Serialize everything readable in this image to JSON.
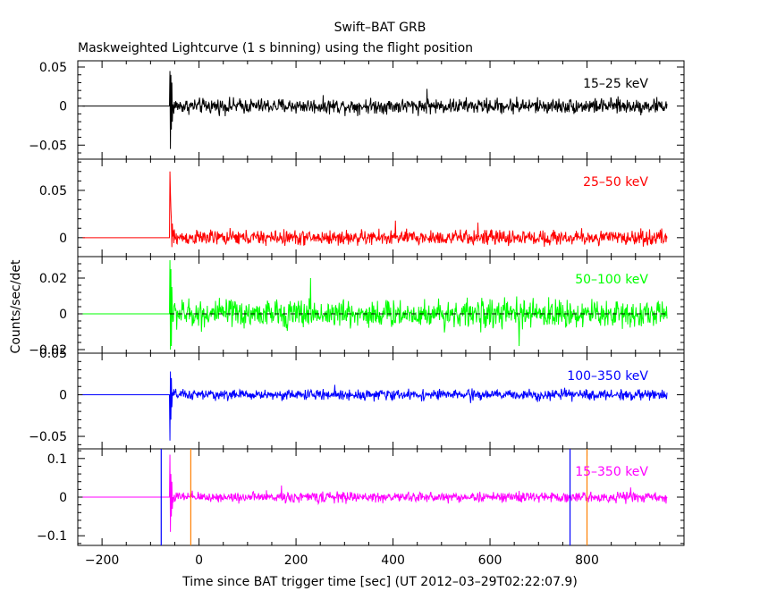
{
  "figure": {
    "title": "Swift–BAT GRB",
    "subtitle": "Maskweighted Lightcurve (1 s binning) using the flight position",
    "xlabel": "Time since BAT trigger time [sec] (UT 2012–03–29T02:22:07.9)",
    "ylabel": "Counts/sec/det"
  },
  "chart_data": [
    {
      "type": "line",
      "panel": 1,
      "name": "15–25 keV",
      "color": "#000000",
      "xlim": [
        -250,
        1000
      ],
      "ylim": [
        -0.068,
        0.058
      ],
      "yticks": [
        {
          "value": 0.05,
          "label": "0.05"
        },
        {
          "value": 0,
          "label": "0"
        },
        {
          "value": -0.05,
          "label": "−0.05"
        }
      ],
      "flat_start": -240,
      "onset": -60,
      "end": 965,
      "noise_amplitude": 0.008,
      "burst": [
        {
          "x": -60,
          "y": 0.045
        },
        {
          "x": -59,
          "y": -0.055
        },
        {
          "x": -58,
          "y": 0.04
        },
        {
          "x": -57,
          "y": -0.03
        },
        {
          "x": -56,
          "y": 0.03
        },
        {
          "x": -55,
          "y": -0.02
        }
      ],
      "spike_values": [
        {
          "x": 470,
          "y": 0.022
        },
        {
          "x": 655,
          "y": 0.012
        }
      ]
    },
    {
      "type": "line",
      "panel": 2,
      "name": "25–50 keV",
      "color": "#ff0000",
      "xlim": [
        -250,
        1000
      ],
      "ylim": [
        -0.02,
        0.083
      ],
      "yticks": [
        {
          "value": 0.05,
          "label": "0.05"
        },
        {
          "value": 0,
          "label": "0"
        }
      ],
      "flat_start": -240,
      "onset": -60,
      "end": 965,
      "noise_amplitude": 0.0065,
      "burst": [
        {
          "x": -60,
          "y": 0.07
        },
        {
          "x": -59,
          "y": 0.048
        },
        {
          "x": -58,
          "y": 0.03
        },
        {
          "x": -57,
          "y": 0.018
        },
        {
          "x": -56,
          "y": -0.01
        },
        {
          "x": -55,
          "y": 0.015
        }
      ],
      "spike_values": [
        {
          "x": 405,
          "y": 0.018
        },
        {
          "x": 575,
          "y": 0.016
        }
      ]
    },
    {
      "type": "line",
      "panel": 3,
      "name": "50–100 keV",
      "color": "#00ff00",
      "xlim": [
        -250,
        1000
      ],
      "ylim": [
        -0.022,
        0.032
      ],
      "yticks": [
        {
          "value": 0.02,
          "label": "0.02"
        },
        {
          "value": 0,
          "label": "0"
        },
        {
          "value": -0.02,
          "label": "−0.02"
        }
      ],
      "flat_start": -240,
      "onset": -60,
      "end": 965,
      "noise_amplitude": 0.0065,
      "burst": [
        {
          "x": -60,
          "y": 0.03
        },
        {
          "x": -59,
          "y": -0.02
        },
        {
          "x": -58,
          "y": 0.025
        },
        {
          "x": -57,
          "y": -0.018
        },
        {
          "x": -56,
          "y": 0.015
        }
      ],
      "spike_values": [
        {
          "x": 230,
          "y": 0.02
        },
        {
          "x": 660,
          "y": -0.018
        }
      ]
    },
    {
      "type": "line",
      "panel": 4,
      "name": "100–350 keV",
      "color": "#0000ff",
      "xlim": [
        -250,
        1000
      ],
      "ylim": [
        -0.065,
        0.05
      ],
      "yticks": [
        {
          "value": 0.05,
          "label": "0.05"
        },
        {
          "value": 0,
          "label": "0"
        },
        {
          "value": -0.05,
          "label": "−0.05"
        }
      ],
      "flat_start": -240,
      "onset": -60,
      "end": 965,
      "noise_amplitude": 0.005,
      "burst": [
        {
          "x": -60,
          "y": -0.055
        },
        {
          "x": -59,
          "y": 0.028
        },
        {
          "x": -58,
          "y": -0.03
        },
        {
          "x": -57,
          "y": 0.02
        },
        {
          "x": -56,
          "y": -0.015
        }
      ],
      "spike_values": [
        {
          "x": 280,
          "y": 0.012
        },
        {
          "x": 560,
          "y": -0.01
        }
      ]
    },
    {
      "type": "line",
      "panel": 5,
      "name": "15–350 keV",
      "color": "#ff00ff",
      "xlim": [
        -250,
        1000
      ],
      "ylim": [
        -0.125,
        0.125
      ],
      "yticks": [
        {
          "value": 0.1,
          "label": "0.1"
        },
        {
          "value": 0,
          "label": "0"
        },
        {
          "value": -0.1,
          "label": "−0.1"
        }
      ],
      "xticks": [
        {
          "value": -200,
          "label": "−200"
        },
        {
          "value": 0,
          "label": "0"
        },
        {
          "value": 200,
          "label": "200"
        },
        {
          "value": 400,
          "label": "400"
        },
        {
          "value": 600,
          "label": "600"
        },
        {
          "value": 800,
          "label": "800"
        }
      ],
      "flat_start": -240,
      "onset": -60,
      "end": 965,
      "noise_amplitude": 0.011,
      "burst": [
        {
          "x": -60,
          "y": 0.11
        },
        {
          "x": -59,
          "y": -0.09
        },
        {
          "x": -58,
          "y": 0.06
        },
        {
          "x": -57,
          "y": -0.05
        },
        {
          "x": -56,
          "y": 0.04
        },
        {
          "x": -55,
          "y": -0.03
        }
      ],
      "spike_values": [
        {
          "x": 170,
          "y": 0.03
        },
        {
          "x": 890,
          "y": 0.025
        }
      ],
      "vertical_lines": [
        {
          "x": -78,
          "color": "#0000ff"
        },
        {
          "x": -17,
          "color": "#ff7f00"
        },
        {
          "x": 765,
          "color": "#0000ff"
        },
        {
          "x": 800,
          "color": "#ff7f00"
        }
      ]
    }
  ]
}
